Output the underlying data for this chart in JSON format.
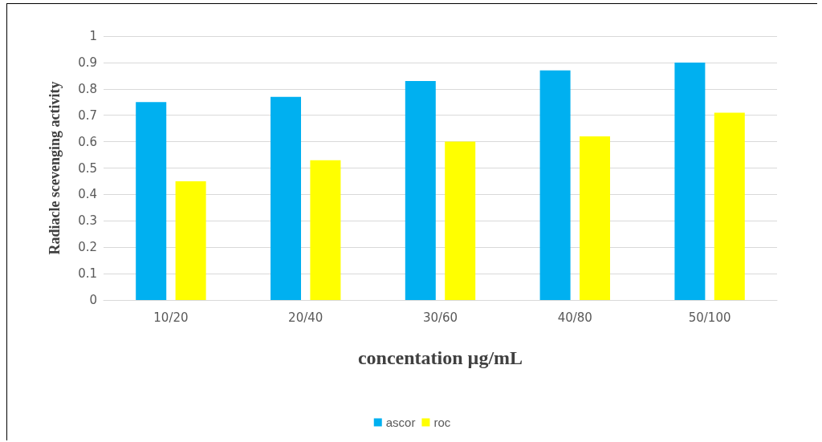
{
  "chart_data": {
    "type": "bar",
    "xlabel": "concentation µg/mL",
    "ylabel": "Radiacle scevenging activity",
    "categories": [
      "10/20",
      "20/40",
      "30/60",
      "40/80",
      "50/100"
    ],
    "series": [
      {
        "name": "ascor",
        "color": "#00b0f0",
        "values": [
          0.75,
          0.77,
          0.83,
          0.87,
          0.9
        ]
      },
      {
        "name": "roc",
        "color": "#ffff00",
        "values": [
          0.45,
          0.53,
          0.6,
          0.62,
          0.71
        ]
      }
    ],
    "ylim": [
      0,
      1
    ],
    "yticks": [
      0,
      0.1,
      0.2,
      0.3,
      0.4,
      0.5,
      0.6,
      0.7,
      0.8,
      0.9,
      1
    ],
    "grid": "y",
    "legend": "bottom"
  }
}
